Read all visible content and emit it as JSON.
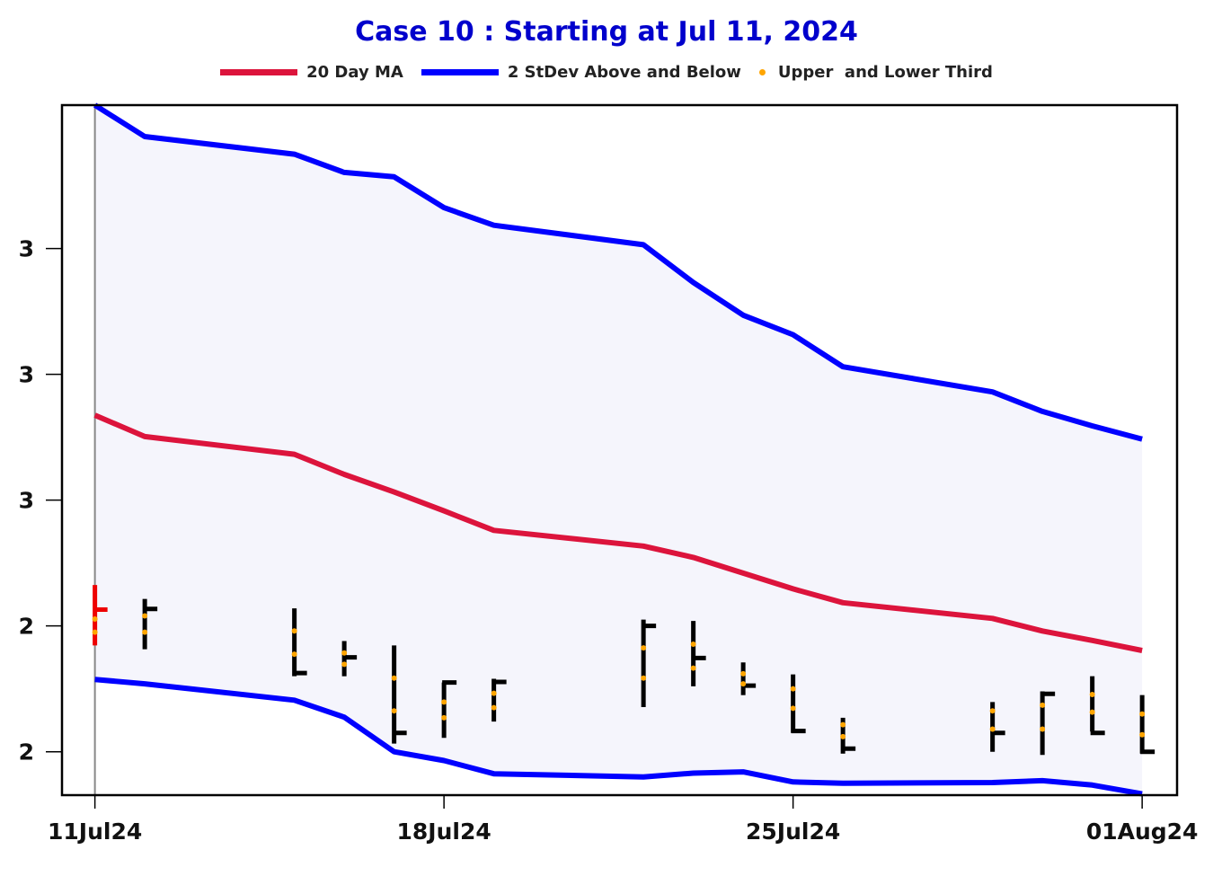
{
  "chart_data": {
    "type": "candlestick-bollinger",
    "title": "Case 10 :  Starting at Jul 11, 2024",
    "legend": [
      {
        "label": "20 Day MA",
        "color": "#dc143c",
        "kind": "line"
      },
      {
        "label": "2 StDev Above and Below",
        "color": "#0000ff",
        "kind": "line"
      },
      {
        "label": "Upper  and Lower Third",
        "color": "#ffa500",
        "kind": "dot"
      }
    ],
    "x_ticks": [
      {
        "day": 0,
        "label": "11Jul24"
      },
      {
        "day": 7,
        "label": "18Jul24"
      },
      {
        "day": 14,
        "label": "25Jul24"
      },
      {
        "day": 21,
        "label": "01Aug24"
      }
    ],
    "x_range": [
      -0.66,
      21.7
    ],
    "y_range": [
      2.131,
      3.228
    ],
    "y_ticks": [
      {
        "value": 2.2,
        "label": "2"
      },
      {
        "value": 2.4,
        "label": "2"
      },
      {
        "value": 2.6,
        "label": "3"
      },
      {
        "value": 2.8,
        "label": "3"
      },
      {
        "value": 3.0,
        "label": "3"
      }
    ],
    "band_fill": "#f5f5fc",
    "ma_color": "#dc143c",
    "band_color": "#0000ff",
    "dot_color": "#ffa500",
    "ma": [
      [
        0,
        2.735
      ],
      [
        1,
        2.701
      ],
      [
        4,
        2.673
      ],
      [
        5,
        2.641
      ],
      [
        6,
        2.613
      ],
      [
        7,
        2.583
      ],
      [
        8,
        2.552
      ],
      [
        11,
        2.527
      ],
      [
        12,
        2.509
      ],
      [
        13,
        2.484
      ],
      [
        14,
        2.459
      ],
      [
        15,
        2.437
      ],
      [
        18,
        2.412
      ],
      [
        19,
        2.392
      ],
      [
        20,
        2.377
      ],
      [
        21,
        2.361
      ]
    ],
    "upper": [
      [
        0,
        3.228
      ],
      [
        1,
        3.178
      ],
      [
        4,
        3.15
      ],
      [
        5,
        3.121
      ],
      [
        6,
        3.114
      ],
      [
        7,
        3.065
      ],
      [
        8,
        3.037
      ],
      [
        11,
        3.006
      ],
      [
        12,
        2.946
      ],
      [
        13,
        2.894
      ],
      [
        14,
        2.863
      ],
      [
        15,
        2.812
      ],
      [
        18,
        2.772
      ],
      [
        19,
        2.741
      ],
      [
        20,
        2.718
      ],
      [
        21,
        2.697
      ]
    ],
    "lower": [
      [
        0,
        2.315
      ],
      [
        1,
        2.308
      ],
      [
        4,
        2.282
      ],
      [
        5,
        2.255
      ],
      [
        6,
        2.2
      ],
      [
        7,
        2.186
      ],
      [
        8,
        2.165
      ],
      [
        11,
        2.16
      ],
      [
        12,
        2.166
      ],
      [
        13,
        2.168
      ],
      [
        14,
        2.152
      ],
      [
        15,
        2.15
      ],
      [
        18,
        2.151
      ],
      [
        19,
        2.154
      ],
      [
        20,
        2.147
      ],
      [
        21,
        2.133
      ]
    ],
    "bars": [
      {
        "day": 0,
        "open": 2.36,
        "high": 2.465,
        "low": 2.369,
        "close": 2.426,
        "upper_third": 2.411,
        "lower_third": 2.39,
        "color": "#ee0000"
      },
      {
        "day": 1,
        "open": 2.427,
        "high": 2.443,
        "low": 2.363,
        "close": 2.427,
        "upper_third": 2.416,
        "lower_third": 2.39,
        "color": "#000000"
      },
      {
        "day": 4,
        "open": 2.385,
        "high": 2.428,
        "low": 2.32,
        "close": 2.325,
        "upper_third": 2.392,
        "lower_third": 2.355,
        "color": "#000000"
      },
      {
        "day": 5,
        "open": 2.375,
        "high": 2.376,
        "low": 2.32,
        "close": 2.35,
        "upper_third": 2.357,
        "lower_third": 2.339,
        "color": "#000000"
      },
      {
        "day": 6,
        "open": 2.369,
        "high": 2.369,
        "low": 2.213,
        "close": 2.23,
        "upper_third": 2.317,
        "lower_third": 2.265,
        "color": "#000000"
      },
      {
        "day": 7,
        "open": 2.294,
        "high": 2.31,
        "low": 2.222,
        "close": 2.31,
        "upper_third": 2.279,
        "lower_third": 2.254,
        "color": "#000000"
      },
      {
        "day": 8,
        "open": 2.281,
        "high": 2.316,
        "low": 2.248,
        "close": 2.311,
        "upper_third": 2.293,
        "lower_third": 2.27,
        "color": "#000000"
      },
      {
        "day": 11,
        "open": 2.396,
        "high": 2.41,
        "low": 2.271,
        "close": 2.4,
        "upper_third": 2.365,
        "lower_third": 2.317,
        "color": "#000000"
      },
      {
        "day": 12,
        "open": 2.334,
        "high": 2.408,
        "low": 2.304,
        "close": 2.349,
        "upper_third": 2.371,
        "lower_third": 2.333,
        "color": "#000000"
      },
      {
        "day": 13,
        "open": 2.312,
        "high": 2.342,
        "low": 2.29,
        "close": 2.305,
        "upper_third": 2.324,
        "lower_third": 2.308,
        "color": "#000000"
      },
      {
        "day": 14,
        "open": 2.25,
        "high": 2.323,
        "low": 2.23,
        "close": 2.233,
        "upper_third": 2.3,
        "lower_third": 2.269,
        "color": "#000000"
      },
      {
        "day": 15,
        "open": 2.203,
        "high": 2.254,
        "low": 2.197,
        "close": 2.205,
        "upper_third": 2.243,
        "lower_third": 2.224,
        "color": "#000000"
      },
      {
        "day": 19,
        "open": 2.205,
        "high": 2.296,
        "low": 2.195,
        "close": 2.292,
        "upper_third": 2.274,
        "lower_third": 2.236,
        "color": "#000000"
      },
      {
        "day": 18,
        "open": 2.2,
        "high": 2.279,
        "low": 2.2,
        "close": 2.23,
        "upper_third": 2.265,
        "lower_third": 2.236,
        "color": "#000000"
      },
      {
        "day": 20,
        "open": 2.32,
        "high": 2.32,
        "low": 2.232,
        "close": 2.23,
        "upper_third": 2.291,
        "lower_third": 2.263,
        "color": "#000000"
      },
      {
        "day": 21,
        "open": 2.29,
        "high": 2.29,
        "low": 2.197,
        "close": 2.2,
        "upper_third": 2.26,
        "lower_third": 2.227,
        "color": "#000000"
      }
    ]
  }
}
